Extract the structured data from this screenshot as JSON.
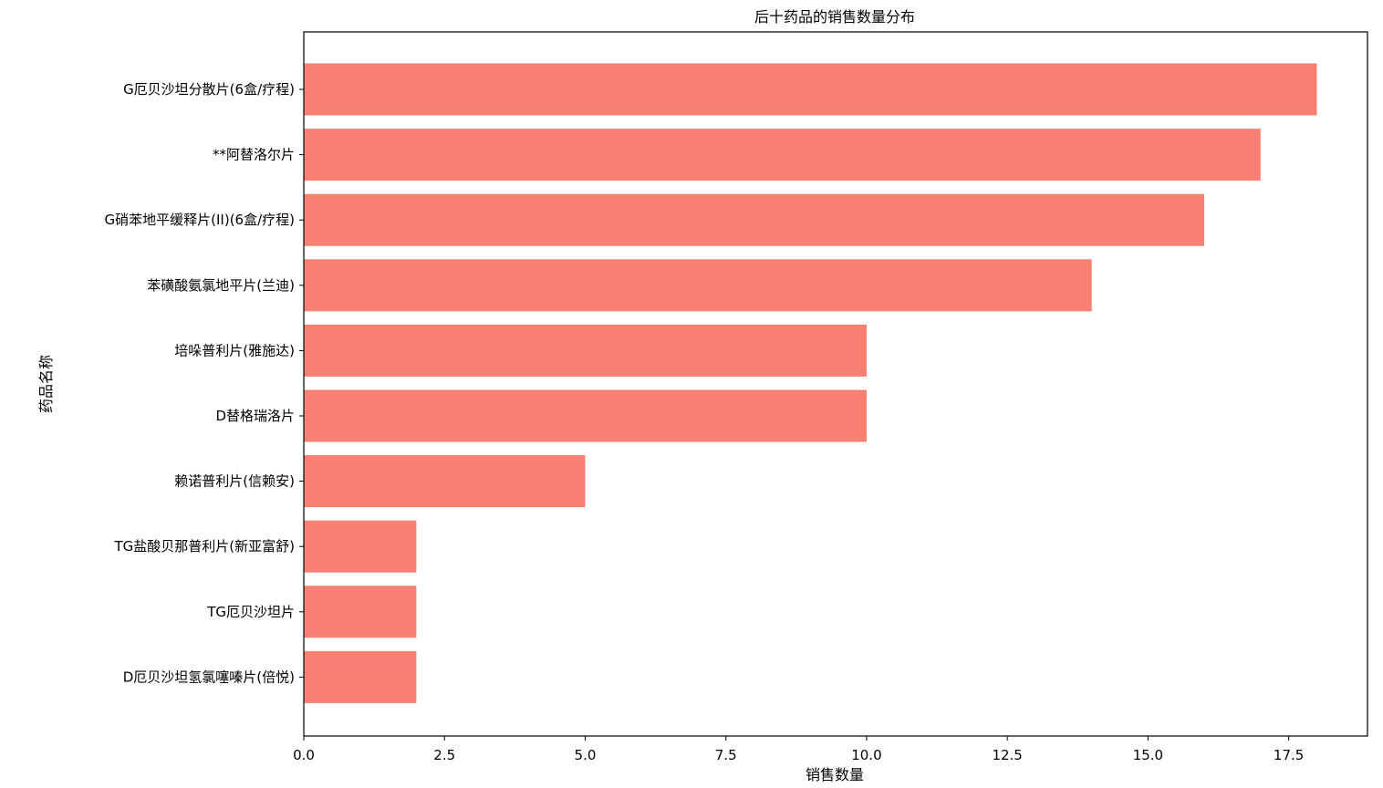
{
  "chart_data": {
    "type": "bar",
    "orientation": "horizontal",
    "title": "后十药品的销售数量分布",
    "xlabel": "销售数量",
    "ylabel": "药品名称",
    "categories": [
      "G厄贝沙坦分散片(6盒/疗程)",
      "**阿替洛尔片",
      "G硝苯地平缓释片(II)(6盒/疗程)",
      "苯磺酸氨氯地平片(兰迪)",
      "培哚普利片(雅施达)",
      "D替格瑞洛片",
      "赖诺普利片(信赖安)",
      "TG盐酸贝那普利片(新亚富舒)",
      "TG厄贝沙坦片",
      "D厄贝沙坦氢氯噻嗪片(倍悦)"
    ],
    "values": [
      18,
      17,
      16,
      14,
      10,
      10,
      5,
      2,
      2,
      2
    ],
    "xlim": [
      0,
      18.9
    ],
    "xticks": [
      0.0,
      2.5,
      5.0,
      7.5,
      10.0,
      12.5,
      15.0,
      17.5
    ],
    "xtick_labels": [
      "0.0",
      "2.5",
      "5.0",
      "7.5",
      "10.0",
      "12.5",
      "15.0",
      "17.5"
    ],
    "bar_color": "#f88072",
    "grid": false,
    "legend": "none"
  }
}
